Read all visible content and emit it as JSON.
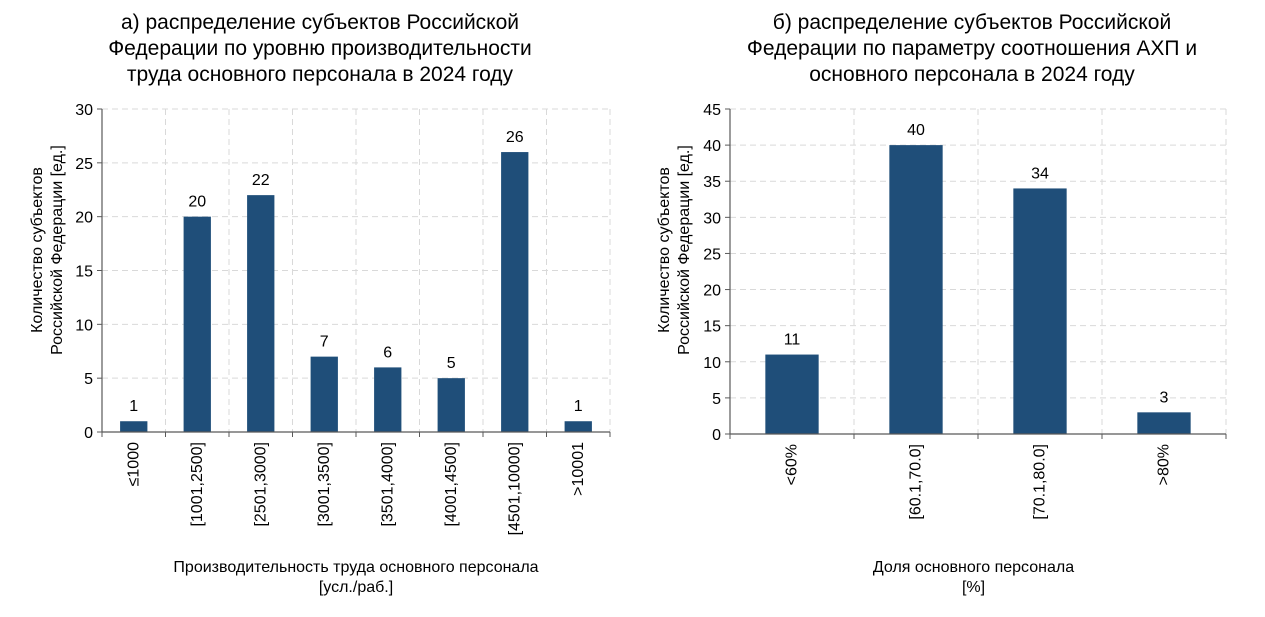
{
  "chart_data": [
    {
      "type": "bar",
      "title": "а) распределение субъектов Российской Федерации по уровню производительности труда основного персонала в 2024 году",
      "title_lines": [
        "а) распределение субъектов Российской",
        "Федерации по уровню производительности",
        "труда основного персонала в 2024 году"
      ],
      "ylabel_lines": [
        "Количество субъектов",
        "Российской Федерации [ед.]"
      ],
      "xlabel_lines": [
        "Производительность труда основного персонала",
        "[усл./раб.]"
      ],
      "categories": [
        "≤1000",
        "[1001,2500]",
        "[2501,3000]",
        "[3001,3500]",
        "[3501,4000]",
        "[4001,4500]",
        "[4501,10000]",
        ">10001"
      ],
      "values": [
        1,
        20,
        22,
        7,
        6,
        5,
        26,
        1
      ],
      "ylim": [
        0,
        30
      ],
      "yticks": [
        0,
        5,
        10,
        15,
        20,
        25,
        30
      ],
      "grid": true,
      "bar_color": "#1f4e79"
    },
    {
      "type": "bar",
      "title": "б) распределение субъектов Российской Федерации по параметру соотношения АХП и основного персонала в 2024 году",
      "title_lines": [
        "б) распределение субъектов Российской",
        "Федерации по параметру соотношения АХП и",
        "основного персонала в 2024 году"
      ],
      "ylabel_lines": [
        "Количество субъектов",
        "Российской Федерации [ед.]"
      ],
      "xlabel_lines": [
        "Доля основного персонала",
        "[%]"
      ],
      "categories": [
        "<60%",
        "[60.1,70.0]",
        "[70.1,80.0]",
        ">80%"
      ],
      "values": [
        11,
        40,
        34,
        3
      ],
      "ylim": [
        0,
        45
      ],
      "yticks": [
        0,
        5,
        10,
        15,
        20,
        25,
        30,
        35,
        40,
        45
      ],
      "grid": true,
      "bar_color": "#1f4e79"
    }
  ]
}
